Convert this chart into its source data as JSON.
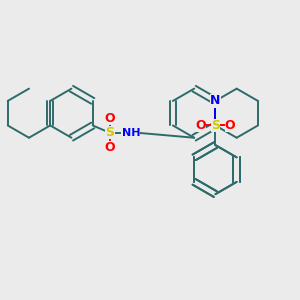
{
  "background_color": "#ebebeb",
  "bond_color": "#2d6b6b",
  "bond_width": 1.4,
  "N_color": "#0000ff",
  "S_color": "#cccc00",
  "O_color": "#ff0000",
  "figsize": [
    3.0,
    3.0
  ],
  "dpi": 100,
  "xlim": [
    0,
    12
  ],
  "ylim": [
    0,
    12
  ]
}
